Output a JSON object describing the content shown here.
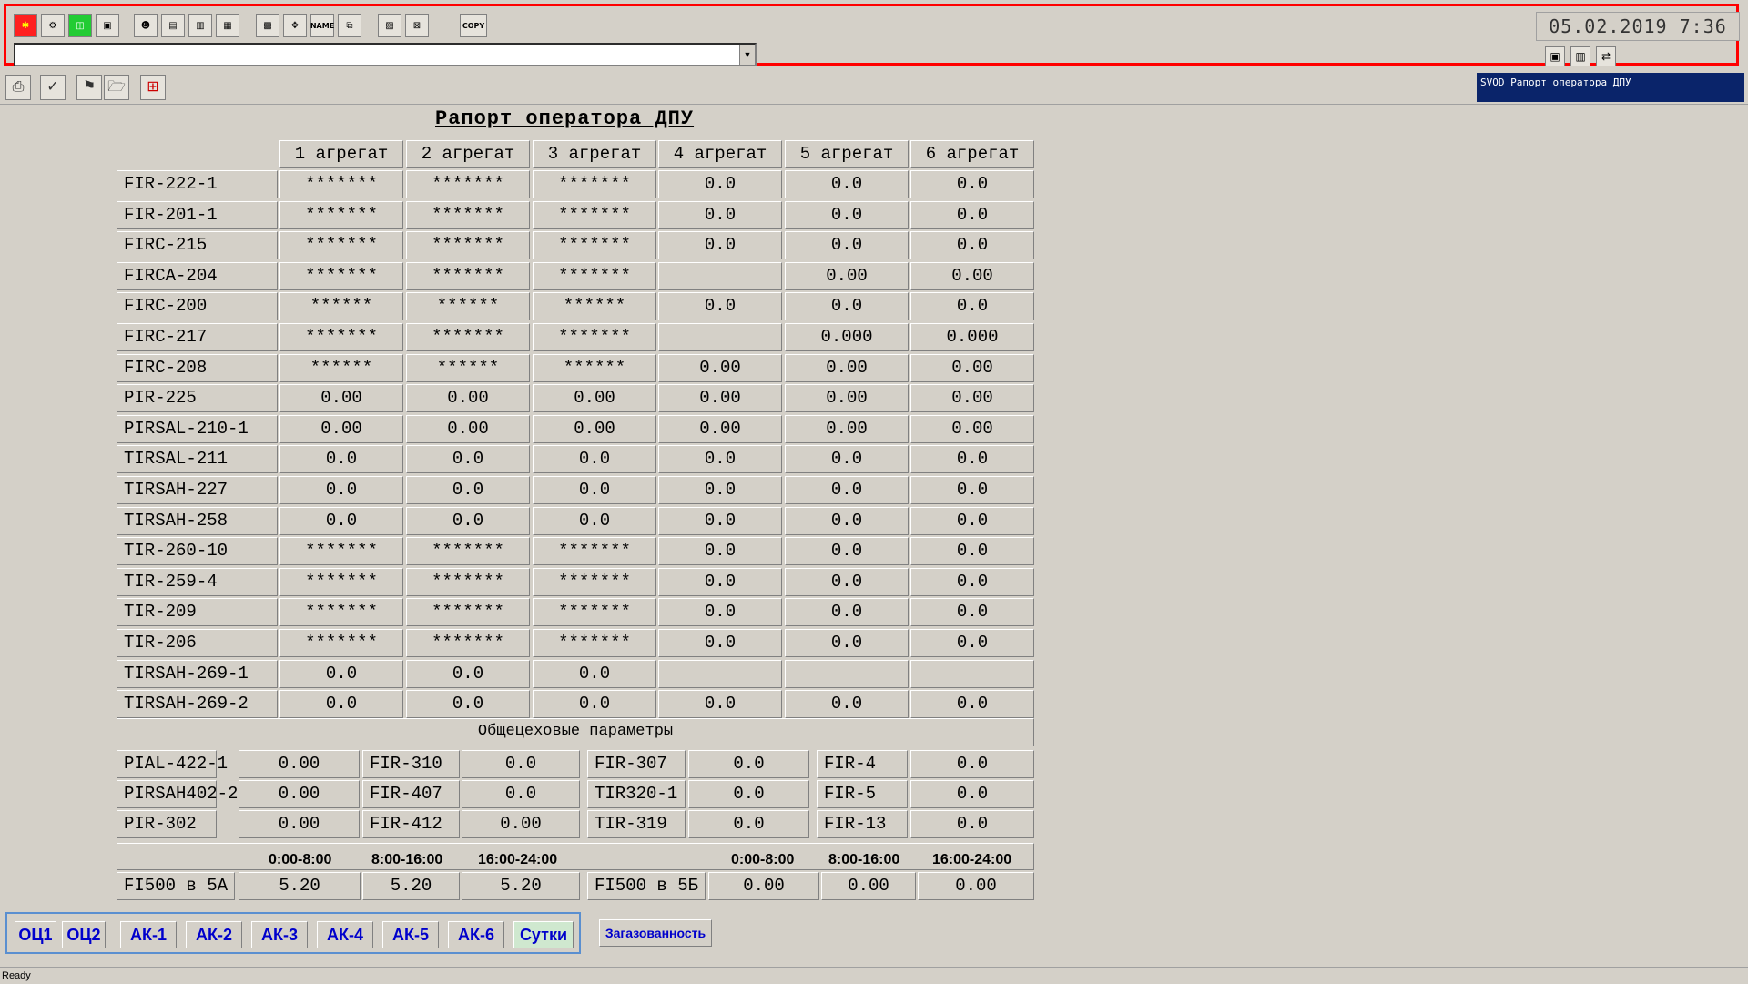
{
  "topbar": {
    "copy_label": "COPY",
    "name_label": "NAME",
    "datetime": "05.02.2019 7:36"
  },
  "window": {
    "title": "SVOD Рапорт оператора ДПУ"
  },
  "report": {
    "title": "Рапорт оператора ДПУ",
    "columns": [
      "1 агрегат",
      "2 агрегат",
      "3 агрегат",
      "4 агрегат",
      "5 агрегат",
      "6 агрегат"
    ],
    "rows": [
      {
        "label": "FIR-222-1",
        "values": [
          "*******",
          "*******",
          "*******",
          "0.0",
          "0.0",
          "0.0"
        ]
      },
      {
        "label": "FIR-201-1",
        "values": [
          "*******",
          "*******",
          "*******",
          "0.0",
          "0.0",
          "0.0"
        ]
      },
      {
        "label": "FIRC-215",
        "values": [
          "*******",
          "*******",
          "*******",
          "0.0",
          "0.0",
          "0.0"
        ]
      },
      {
        "label": "FIRCA-204",
        "values": [
          "*******",
          "*******",
          "*******",
          "",
          "0.00",
          "0.00"
        ]
      },
      {
        "label": "FIRC-200",
        "values": [
          "******",
          "******",
          "******",
          "0.0",
          "0.0",
          "0.0"
        ]
      },
      {
        "label": "FIRC-217",
        "values": [
          "*******",
          "*******",
          "*******",
          "",
          "0.000",
          "0.000"
        ]
      },
      {
        "label": "FIRC-208",
        "values": [
          "******",
          "******",
          "******",
          "0.00",
          "0.00",
          "0.00"
        ]
      },
      {
        "label": "PIR-225",
        "values": [
          "0.00",
          "0.00",
          "0.00",
          "0.00",
          "0.00",
          "0.00"
        ]
      },
      {
        "label": "PIRSAL-210-1",
        "values": [
          "0.00",
          "0.00",
          "0.00",
          "0.00",
          "0.00",
          "0.00"
        ]
      },
      {
        "label": "TIRSAL-211",
        "values": [
          "0.0",
          "0.0",
          "0.0",
          "0.0",
          "0.0",
          "0.0"
        ]
      },
      {
        "label": "TIRSAH-227",
        "values": [
          "0.0",
          "0.0",
          "0.0",
          "0.0",
          "0.0",
          "0.0"
        ]
      },
      {
        "label": "TIRSAH-258",
        "values": [
          "0.0",
          "0.0",
          "0.0",
          "0.0",
          "0.0",
          "0.0"
        ]
      },
      {
        "label": "TIR-260-10",
        "values": [
          "*******",
          "*******",
          "*******",
          "0.0",
          "0.0",
          "0.0"
        ]
      },
      {
        "label": "TIR-259-4",
        "values": [
          "*******",
          "*******",
          "*******",
          "0.0",
          "0.0",
          "0.0"
        ]
      },
      {
        "label": "TIR-209",
        "values": [
          "*******",
          "*******",
          "*******",
          "0.0",
          "0.0",
          "0.0"
        ]
      },
      {
        "label": "TIR-206",
        "values": [
          "*******",
          "*******",
          "*******",
          "0.0",
          "0.0",
          "0.0"
        ]
      },
      {
        "label": "TIRSAH-269-1",
        "values": [
          "0.0",
          "0.0",
          "0.0",
          "",
          "",
          ""
        ]
      },
      {
        "label": "TIRSAH-269-2",
        "values": [
          "0.0",
          "0.0",
          "0.0",
          "0.0",
          "0.0",
          "0.0"
        ]
      }
    ],
    "common_header": "Общецеховые параметры",
    "common_rows": [
      [
        {
          "label": "PIAL-422-1",
          "value": "0.00"
        },
        {
          "label": "FIR-310",
          "value": "0.0"
        },
        {
          "label": "FIR-307",
          "value": "0.0"
        },
        {
          "label": "FIR-4",
          "value": "0.0"
        }
      ],
      [
        {
          "label": "PIRSAH402-2",
          "value": "0.00"
        },
        {
          "label": "FIR-407",
          "value": "0.0"
        },
        {
          "label": "TIR320-1",
          "value": "0.0"
        },
        {
          "label": "FIR-5",
          "value": "0.0"
        }
      ],
      [
        {
          "label": "PIR-302",
          "value": "0.00"
        },
        {
          "label": "FIR-412",
          "value": "0.00"
        },
        {
          "label": "TIR-319",
          "value": "0.0"
        },
        {
          "label": "FIR-13",
          "value": "0.0"
        }
      ]
    ],
    "shifts": [
      "0:00-8:00",
      "8:00-16:00",
      "16:00-24:00"
    ],
    "fi500": [
      {
        "label": "FI500 в 5А",
        "values": [
          "5.20",
          "5.20",
          "5.20"
        ]
      },
      {
        "label": "FI500 в 5Б",
        "values": [
          "0.00",
          "0.00",
          "0.00"
        ]
      }
    ]
  },
  "nav": {
    "buttons": [
      "ОЦ1",
      "ОЦ2",
      "АК-1",
      "АК-2",
      "АК-3",
      "АК-4",
      "АК-5",
      "АК-6",
      "Сутки"
    ],
    "gas_button": "Загазованность"
  },
  "status": {
    "text": "Ready"
  },
  "colors": {
    "frame": "#ff0000",
    "title_bar": "#0a246a",
    "nav_text": "#0000cc",
    "nav_border": "#5a8fd0"
  }
}
